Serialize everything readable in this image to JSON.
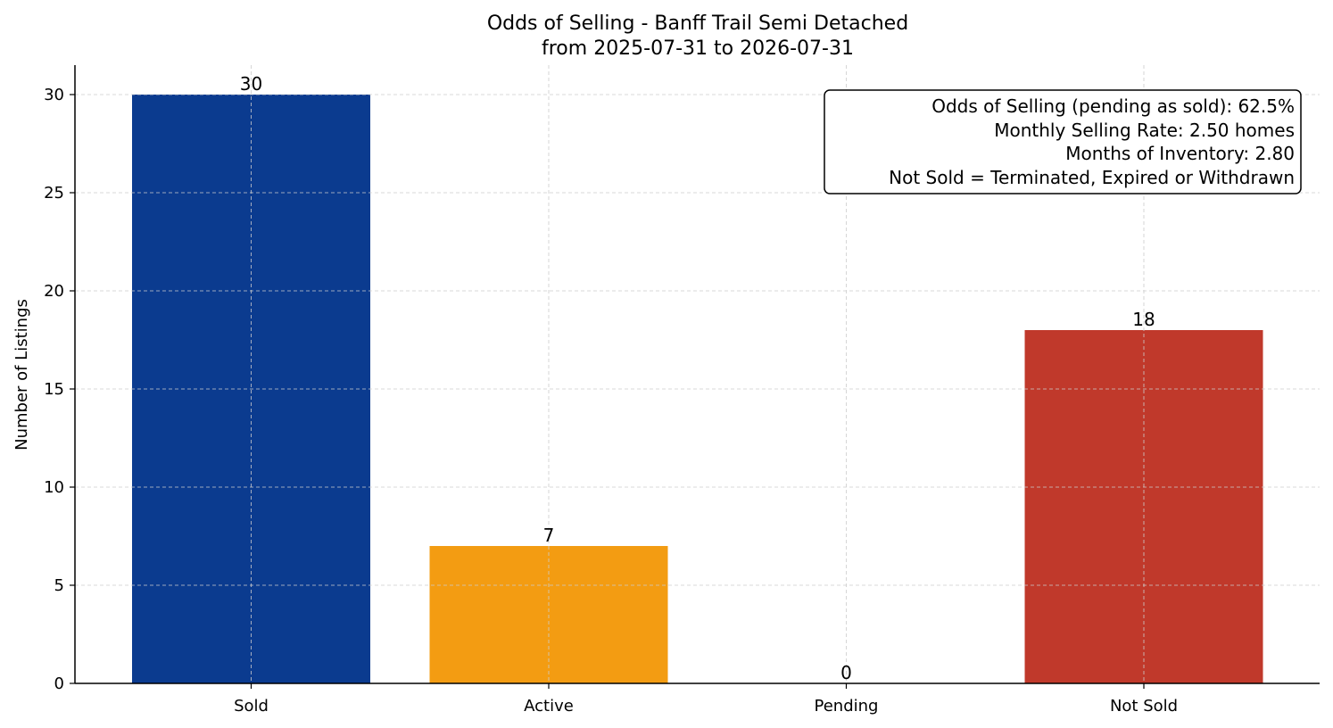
{
  "chart_data": {
    "type": "bar",
    "title": "Odds of Selling - Banff Trail Semi Detached",
    "subtitle": "from 2025-07-31 to 2026-07-31",
    "xlabel": "",
    "ylabel": "Number of Listings",
    "categories": [
      "Sold",
      "Active",
      "Pending",
      "Not Sold"
    ],
    "values": [
      30,
      7,
      0,
      18
    ],
    "data_labels": [
      "30",
      "7",
      "0",
      "18"
    ],
    "colors": [
      "#0b3b8f",
      "#f39c12",
      "#2e9e4f",
      "#c0392b"
    ],
    "ylim": [
      0,
      31.5
    ],
    "yticks": [
      0,
      5,
      10,
      15,
      20,
      25,
      30
    ],
    "grid": true,
    "annotation": {
      "lines": [
        "Odds of Selling (pending as sold): 62.5%",
        "Monthly Selling Rate: 2.50 homes",
        "Months of Inventory: 2.80",
        "Not Sold = Terminated, Expired or Withdrawn"
      ],
      "placement": "top-right"
    }
  }
}
